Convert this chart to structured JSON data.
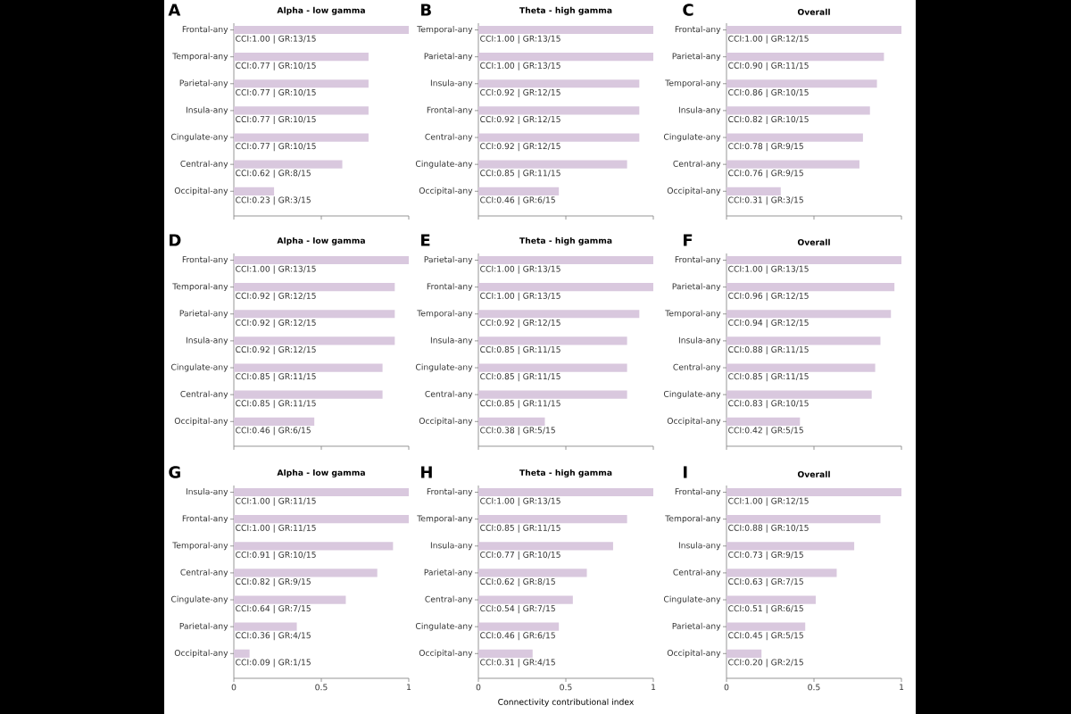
{
  "chart_data": [
    {
      "type": "bar",
      "orientation": "horizontal",
      "title": "Alpha - low gamma",
      "annotations": [
        "A"
      ],
      "categories": [
        "Frontal-any",
        "Temporal-any",
        "Parietal-any",
        "Insula-any",
        "Cingulate-any",
        "Central-any",
        "Occipital-any"
      ],
      "values": [
        1.0,
        0.77,
        0.77,
        0.77,
        0.77,
        0.62,
        0.23
      ],
      "value_labels": [
        "CCI:1.00 | GR:13/15",
        "CCI:0.77 | GR:10/15",
        "CCI:0.77 | GR:10/15",
        "CCI:0.77 | GR:10/15",
        "CCI:0.77 | GR:10/15",
        "CCI:0.62 | GR:8/15",
        "CCI:0.23 | GR:3/15"
      ],
      "color": "#d9c8de",
      "xlim": [
        0,
        1
      ],
      "xticks": [
        0,
        0.5,
        1
      ],
      "tick_labels": "y"
    },
    {
      "type": "bar",
      "orientation": "horizontal",
      "title": "Theta - high gamma",
      "annotations": [
        "B"
      ],
      "categories": [
        "Temporal-any",
        "Parietal-any",
        "Insula-any",
        "Frontal-any",
        "Central-any",
        "Cingulate-any",
        "Occipital-any"
      ],
      "values": [
        1.0,
        1.0,
        0.92,
        0.92,
        0.92,
        0.85,
        0.46
      ],
      "value_labels": [
        "CCI:1.00 | GR:13/15",
        "CCI:1.00 | GR:13/15",
        "CCI:0.92 | GR:12/15",
        "CCI:0.92 | GR:12/15",
        "CCI:0.92 | GR:12/15",
        "CCI:0.85 | GR:11/15",
        "CCI:0.46 | GR:6/15"
      ],
      "color": "#d9c8de",
      "xlim": [
        0,
        1
      ],
      "xticks": [
        0,
        0.5,
        1
      ],
      "tick_labels": "y"
    },
    {
      "type": "bar",
      "orientation": "horizontal",
      "title": "Overall",
      "annotations": [
        "C"
      ],
      "categories": [
        "Frontal-any",
        "Parietal-any",
        "Temporal-any",
        "Insula-any",
        "Cingulate-any",
        "Central-any",
        "Occipital-any"
      ],
      "values": [
        1.0,
        0.9,
        0.86,
        0.82,
        0.78,
        0.76,
        0.31
      ],
      "value_labels": [
        "CCI:1.00 | GR:12/15",
        "CCI:0.90 | GR:11/15",
        "CCI:0.86 | GR:10/15",
        "CCI:0.82 | GR:10/15",
        "CCI:0.78 | GR:9/15",
        "CCI:0.76 | GR:9/15",
        "CCI:0.31 | GR:3/15"
      ],
      "color": "#d9c8de",
      "xlim": [
        0,
        1
      ],
      "xticks": [
        0,
        0.5,
        1
      ],
      "tick_labels": "y"
    },
    {
      "type": "bar",
      "orientation": "horizontal",
      "title": "Alpha - low gamma",
      "annotations": [
        "D"
      ],
      "categories": [
        "Frontal-any",
        "Temporal-any",
        "Parietal-any",
        "Insula-any",
        "Cingulate-any",
        "Central-any",
        "Occipital-any"
      ],
      "values": [
        1.0,
        0.92,
        0.92,
        0.92,
        0.85,
        0.85,
        0.46
      ],
      "value_labels": [
        "CCI:1.00 | GR:13/15",
        "CCI:0.92 | GR:12/15",
        "CCI:0.92 | GR:12/15",
        "CCI:0.92 | GR:12/15",
        "CCI:0.85 | GR:11/15",
        "CCI:0.85 | GR:11/15",
        "CCI:0.46 | GR:6/15"
      ],
      "color": "#d9c8de",
      "xlim": [
        0,
        1
      ],
      "xticks": [
        0,
        0.5,
        1
      ],
      "tick_labels": "y"
    },
    {
      "type": "bar",
      "orientation": "horizontal",
      "title": "Theta - high gamma",
      "annotations": [
        "E"
      ],
      "categories": [
        "Parietal-any",
        "Frontal-any",
        "Temporal-any",
        "Insula-any",
        "Cingulate-any",
        "Central-any",
        "Occipital-any"
      ],
      "values": [
        1.0,
        1.0,
        0.92,
        0.85,
        0.85,
        0.85,
        0.38
      ],
      "value_labels": [
        "CCI:1.00 | GR:13/15",
        "CCI:1.00 | GR:13/15",
        "CCI:0.92 | GR:12/15",
        "CCI:0.85 | GR:11/15",
        "CCI:0.85 | GR:11/15",
        "CCI:0.85 | GR:11/15",
        "CCI:0.38 | GR:5/15"
      ],
      "color": "#d9c8de",
      "xlim": [
        0,
        1
      ],
      "xticks": [
        0,
        0.5,
        1
      ],
      "tick_labels": "y"
    },
    {
      "type": "bar",
      "orientation": "horizontal",
      "title": "Overall",
      "annotations": [
        "F"
      ],
      "categories": [
        "Frontal-any",
        "Parietal-any",
        "Temporal-any",
        "Insula-any",
        "Central-any",
        "Cingulate-any",
        "Occipital-any"
      ],
      "values": [
        1.0,
        0.96,
        0.94,
        0.88,
        0.85,
        0.83,
        0.42
      ],
      "value_labels": [
        "CCI:1.00 | GR:13/15",
        "CCI:0.96 | GR:12/15",
        "CCI:0.94 | GR:12/15",
        "CCI:0.88 | GR:11/15",
        "CCI:0.85 | GR:11/15",
        "CCI:0.83 | GR:10/15",
        "CCI:0.42 | GR:5/15"
      ],
      "color": "#d9c8de",
      "xlim": [
        0,
        1
      ],
      "xticks": [
        0,
        0.5,
        1
      ],
      "tick_labels": "y"
    },
    {
      "type": "bar",
      "orientation": "horizontal",
      "title": "Alpha - low gamma",
      "annotations": [
        "G"
      ],
      "categories": [
        "Insula-any",
        "Frontal-any",
        "Temporal-any",
        "Central-any",
        "Cingulate-any",
        "Parietal-any",
        "Occipital-any"
      ],
      "values": [
        1.0,
        1.0,
        0.91,
        0.82,
        0.64,
        0.36,
        0.09
      ],
      "value_labels": [
        "CCI:1.00 | GR:11/15",
        "CCI:1.00 | GR:11/15",
        "CCI:0.91 | GR:10/15",
        "CCI:0.82 | GR:9/15",
        "CCI:0.64 | GR:7/15",
        "CCI:0.36 | GR:4/15",
        "CCI:0.09 | GR:1/15"
      ],
      "color": "#d9c8de",
      "xlim": [
        0,
        1
      ],
      "xticks": [
        0,
        0.5,
        1
      ]
    },
    {
      "type": "bar",
      "orientation": "horizontal",
      "title": "Theta - high gamma",
      "annotations": [
        "H"
      ],
      "xlabel": "Connectivity contributional index",
      "categories": [
        "Frontal-any",
        "Temporal-any",
        "Insula-any",
        "Parietal-any",
        "Central-any",
        "Cingulate-any",
        "Occipital-any"
      ],
      "values": [
        1.0,
        0.85,
        0.77,
        0.62,
        0.54,
        0.46,
        0.31
      ],
      "value_labels": [
        "CCI:1.00 | GR:13/15",
        "CCI:0.85 | GR:11/15",
        "CCI:0.77 | GR:10/15",
        "CCI:0.62 | GR:8/15",
        "CCI:0.54 | GR:7/15",
        "CCI:0.46 | GR:6/15",
        "CCI:0.31 | GR:4/15"
      ],
      "color": "#d9c8de",
      "xlim": [
        0,
        1
      ],
      "xticks": [
        0,
        0.5,
        1
      ]
    },
    {
      "type": "bar",
      "orientation": "horizontal",
      "title": "Overall",
      "annotations": [
        "I"
      ],
      "categories": [
        "Frontal-any",
        "Temporal-any",
        "Insula-any",
        "Central-any",
        "Cingulate-any",
        "Parietal-any",
        "Occipital-any"
      ],
      "values": [
        1.0,
        0.88,
        0.73,
        0.63,
        0.51,
        0.45,
        0.2
      ],
      "value_labels": [
        "CCI:1.00 | GR:12/15",
        "CCI:0.88 | GR:10/15",
        "CCI:0.73 | GR:9/15",
        "CCI:0.63 | GR:7/15",
        "CCI:0.51 | GR:6/15",
        "CCI:0.45 | GR:5/15",
        "CCI:0.20 | GR:2/15"
      ],
      "color": "#d9c8de",
      "xlim": [
        0,
        1
      ],
      "xticks": [
        0,
        0.5,
        1
      ]
    }
  ]
}
